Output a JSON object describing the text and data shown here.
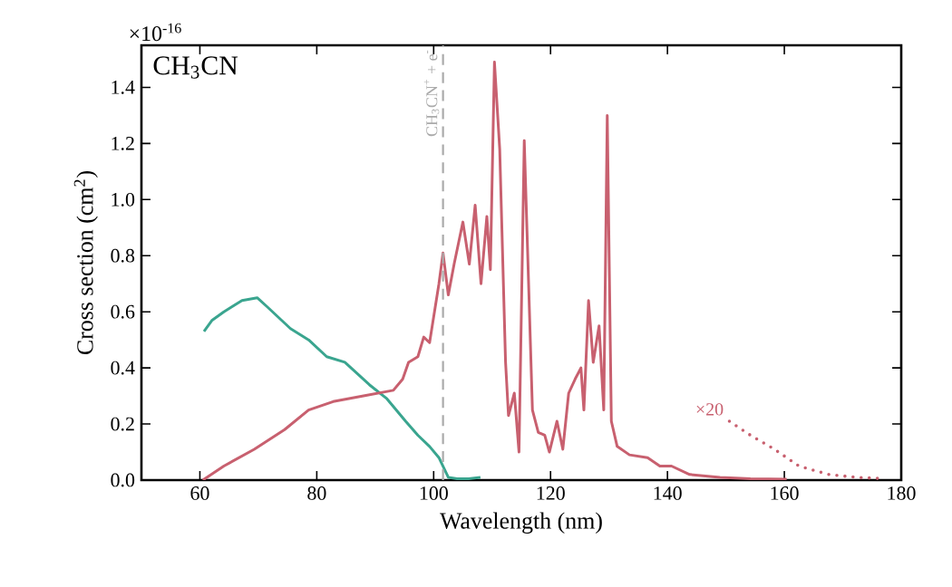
{
  "chart_data": {
    "type": "line",
    "title": "CH$_{3}$CN",
    "xlabel": "Wavelength (nm)",
    "ylabel": "Cross section (cm$^{2}$)",
    "xlim": [
      50,
      180
    ],
    "xticks": [
      60,
      80,
      100,
      120,
      140,
      160,
      180
    ],
    "ylim": [
      0,
      1.55
    ],
    "yticks": [
      {
        "value": 0,
        "label": "0.0"
      },
      {
        "value": 0.2,
        "label": "0.2"
      },
      {
        "value": 0.4,
        "label": "0.4"
      },
      {
        "value": 0.6,
        "label": "0.6"
      },
      {
        "value": 0.8,
        "label": "0.8"
      },
      {
        "value": 1.0,
        "label": "1.0"
      },
      {
        "value": 1.2,
        "label": "1.2"
      },
      {
        "value": 1.4,
        "label": "1.4"
      }
    ],
    "annotations": [
      "×10$^{-16}$",
      "×20"
    ],
    "ref_lines": [
      {
        "axis": "x",
        "value": 101.6,
        "label": "CH$_{3}$CN$^{+}$ + e$^{-}$",
        "color": "#aaaaaa",
        "line_style": "dashed"
      }
    ],
    "series": [
      {
        "color": "#3aa58f",
        "x": [
          60.7,
          62.1,
          64.1,
          67.2,
          69.8,
          71.4,
          75.5,
          78.6,
          81.7,
          84.8,
          89.0,
          92.0,
          95.2,
          97.3,
          99.3,
          100.9,
          102.5,
          104,
          106,
          108
        ],
        "values": [
          0.53,
          0.57,
          0.6,
          0.64,
          0.65,
          0.62,
          0.54,
          0.5,
          0.44,
          0.42,
          0.34,
          0.29,
          0.21,
          0.16,
          0.12,
          0.08,
          0.01,
          0.005,
          0.005,
          0.01
        ]
      },
      {
        "color": "#c8606f",
        "x": [
          60.5,
          64.1,
          69.3,
          74.5,
          78.6,
          82.8,
          88.0,
          93.1,
          94.7,
          95.7,
          97.3,
          98.3,
          99.3,
          100.9,
          101.6,
          102.5,
          103.5,
          105.0,
          106.1,
          107.1,
          108.1,
          109.1,
          109.7,
          110.4,
          111.3,
          112.3,
          112.8,
          113.8,
          114.6,
          115.5,
          116.9,
          117.9,
          119.0,
          119.8,
          121.1,
          122.1,
          123.1,
          124.2,
          125.2,
          125.7,
          126.5,
          127.3,
          128.3,
          129.1,
          129.7,
          130.4,
          131.4,
          133.5,
          136.6,
          138.7,
          140.7,
          143.8,
          149.0,
          154.2,
          160.4
        ],
        "values": [
          0,
          0.05,
          0.11,
          0.18,
          0.25,
          0.28,
          0.3,
          0.32,
          0.36,
          0.42,
          0.44,
          0.51,
          0.49,
          0.7,
          0.81,
          0.66,
          0.77,
          0.92,
          0.77,
          0.98,
          0.7,
          0.94,
          0.75,
          1.49,
          1.18,
          0.42,
          0.23,
          0.31,
          0.1,
          1.21,
          0.25,
          0.17,
          0.16,
          0.1,
          0.21,
          0.11,
          0.31,
          0.36,
          0.4,
          0.25,
          0.64,
          0.42,
          0.55,
          0.25,
          1.3,
          0.21,
          0.12,
          0.09,
          0.08,
          0.05,
          0.05,
          0.02,
          0.01,
          0.005,
          0.003
        ]
      },
      {
        "color": "#c8606f",
        "line_style": "dotted",
        "x": [
          150.6,
          154.2,
          158.3,
          162.5,
          167.6,
          172.3,
          177.0
        ],
        "values": [
          0.21,
          0.16,
          0.11,
          0.05,
          0.02,
          0.01,
          0.005
        ]
      }
    ]
  }
}
